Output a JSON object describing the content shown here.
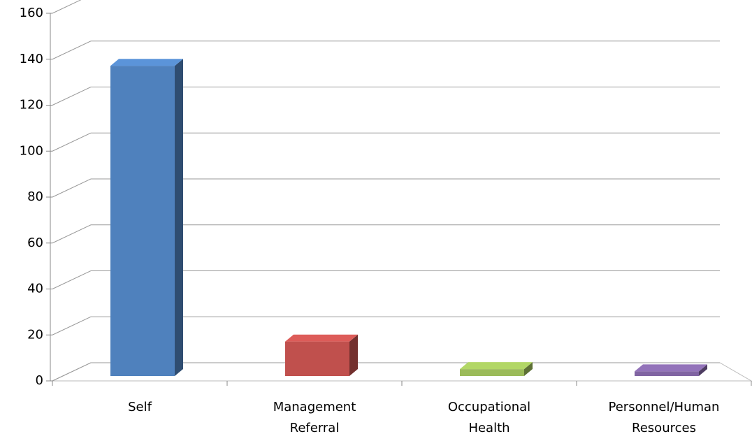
{
  "chart_data": {
    "type": "bar3d",
    "categories": [
      "Self",
      "Management Referral",
      "Occupational Health",
      "Personnel/Human Resources"
    ],
    "values": [
      135,
      15,
      3,
      2
    ],
    "colors": [
      "#4f81bd",
      "#c0504d",
      "#9bbb59",
      "#8064a2"
    ],
    "ylim": [
      0,
      160
    ],
    "yticks": [
      0,
      20,
      40,
      60,
      80,
      100,
      120,
      140,
      160
    ],
    "grid": true
  }
}
